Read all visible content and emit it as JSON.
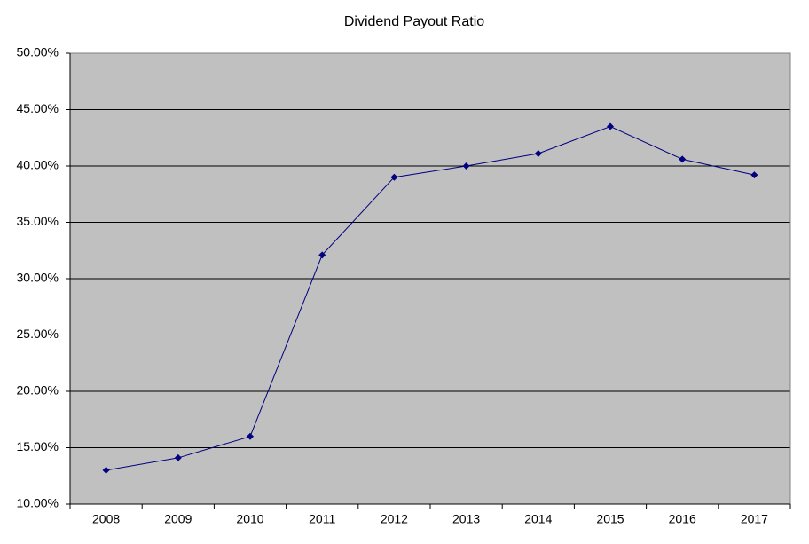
{
  "chart_data": {
    "type": "line",
    "title": "Dividend Payout Ratio",
    "categories": [
      "2008",
      "2009",
      "2010",
      "2011",
      "2012",
      "2013",
      "2014",
      "2015",
      "2016",
      "2017"
    ],
    "values": [
      13.0,
      14.1,
      16.0,
      32.1,
      39.0,
      40.0,
      41.1,
      43.5,
      40.6,
      39.2
    ],
    "color": "#000080",
    "ylim": [
      10,
      50
    ],
    "yticks": [
      {
        "value": 10,
        "label": "10.00%"
      },
      {
        "value": 15,
        "label": "15.00%"
      },
      {
        "value": 20,
        "label": "20.00%"
      },
      {
        "value": 25,
        "label": "25.00%"
      },
      {
        "value": 30,
        "label": "30.00%"
      },
      {
        "value": 35,
        "label": "35.00%"
      },
      {
        "value": 40,
        "label": "40.00%"
      },
      {
        "value": 45,
        "label": "45.00%"
      },
      {
        "value": 50,
        "label": "50.00%"
      }
    ],
    "grid": true
  }
}
